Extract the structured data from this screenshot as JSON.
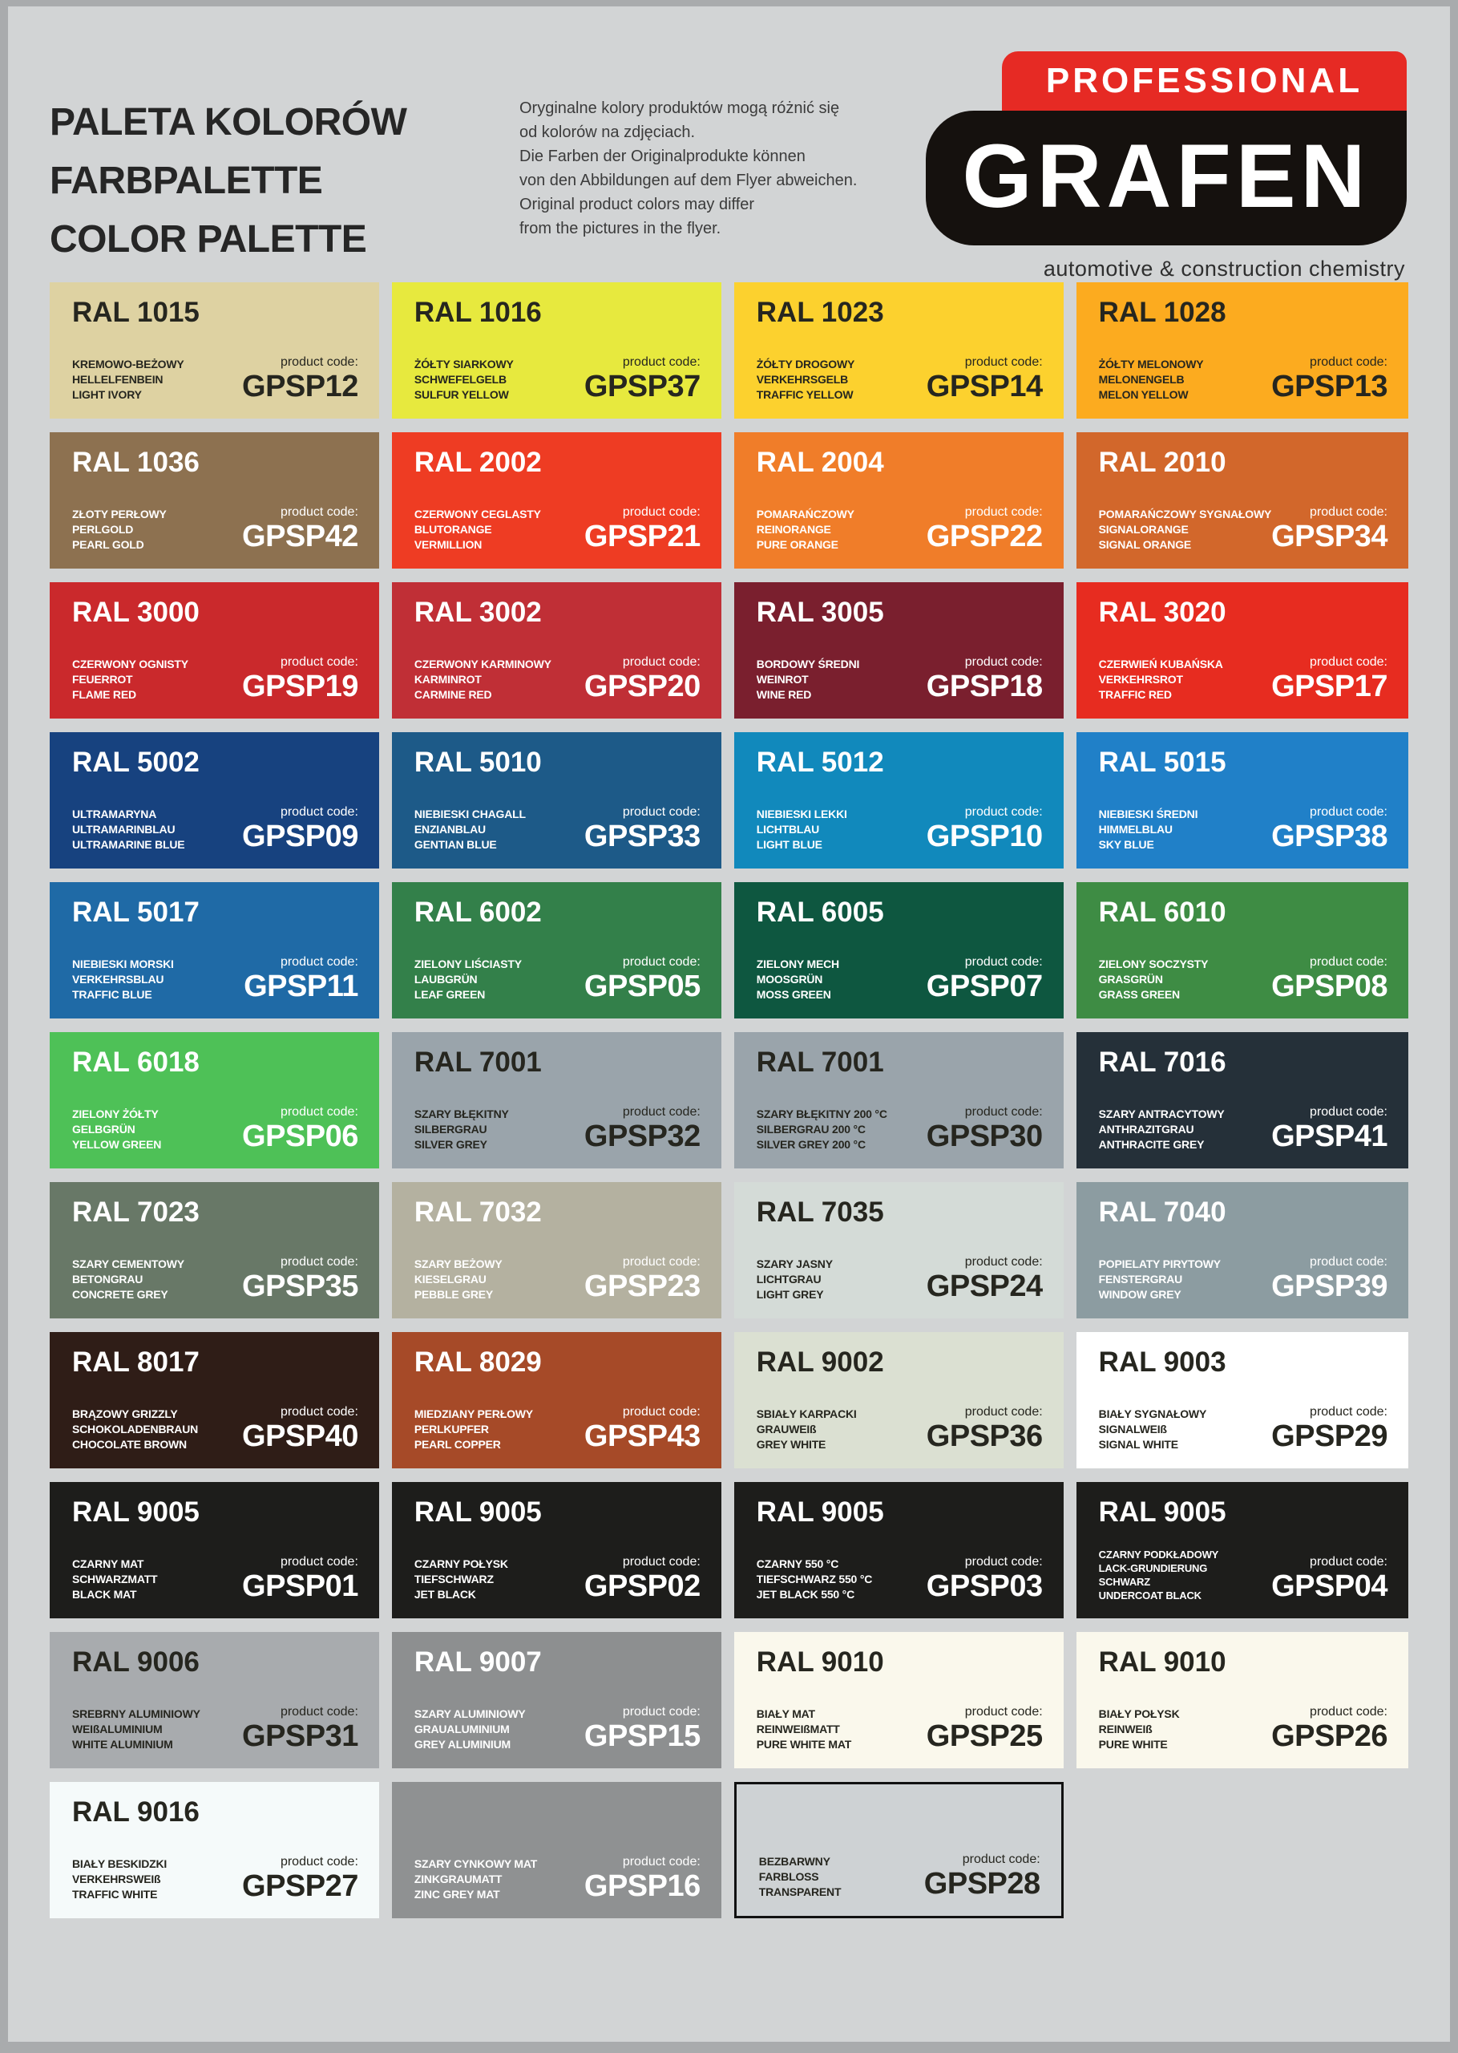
{
  "page": {
    "title_lines": [
      "PALETA KOLORÓW",
      "FARBPALETTE",
      "COLOR PALETTE"
    ],
    "disclaimer_lines": [
      "Oryginalne kolory produktów mogą różnić się",
      "od kolorów na zdjęciach.",
      "Die Farben der Originalprodukte können",
      "von den Abbildungen auf dem Flyer abweichen.",
      "Original product colors may differ",
      "from the pictures in the flyer."
    ],
    "code_label": "product code:",
    "logo": {
      "banner": "PROFESSIONAL",
      "brand": "GRAFEN",
      "caption": "automotive & construction chemistry",
      "banner_color": "#e62a24",
      "shape_color": "#15110e"
    },
    "background_color": "#d2d4d5",
    "outer_border_color": "#a9abad"
  },
  "chart_data": {
    "type": "table",
    "title": "PALETA KOLORÓW / FARBPALETTE / COLOR PALETTE",
    "columns": [
      "ral",
      "names (PL/DE/EN)",
      "product_code",
      "swatch_hex",
      "text_tone",
      "outlined"
    ],
    "rows": [
      {
        "ral": "RAL 1015",
        "names": [
          "KREMOWO-BEŻOWY",
          "HELLELFENBEIN",
          "LIGHT IVORY"
        ],
        "code": "GPSP12",
        "hex": "#ded2a2",
        "text": "dark",
        "outlined": false
      },
      {
        "ral": "RAL 1016",
        "names": [
          "ŻÓŁTY SIARKOWY",
          "SCHWEFELGELB",
          "SULFUR YELLOW"
        ],
        "code": "GPSP37",
        "hex": "#e7e93e",
        "text": "dark",
        "outlined": false
      },
      {
        "ral": "RAL 1023",
        "names": [
          "ŻÓŁTY DROGOWY",
          "VERKEHRSGELB",
          "TRAFFIC YELLOW"
        ],
        "code": "GPSP14",
        "hex": "#fcd12e",
        "text": "dark",
        "outlined": false
      },
      {
        "ral": "RAL 1028",
        "names": [
          "ŻÓŁTY MELONOWY",
          "MELONENGELB",
          "MELON YELLOW"
        ],
        "code": "GPSP13",
        "hex": "#fcab1f",
        "text": "dark",
        "outlined": false
      },
      {
        "ral": "RAL 1036",
        "names": [
          "ZŁOTY PERŁOWY",
          "PERLGOLD",
          "PEARL GOLD"
        ],
        "code": "GPSP42",
        "hex": "#8d7150",
        "text": "light",
        "outlined": false
      },
      {
        "ral": "RAL 2002",
        "names": [
          "CZERWONY CEGLASTY",
          "BLUTORANGE",
          "VERMILLION"
        ],
        "code": "GPSP21",
        "hex": "#ee3c23",
        "text": "light",
        "outlined": false
      },
      {
        "ral": "RAL 2004",
        "names": [
          "POMARAŃCZOWY",
          "REINORANGE",
          "PURE ORANGE"
        ],
        "code": "GPSP22",
        "hex": "#f07d29",
        "text": "light",
        "outlined": false
      },
      {
        "ral": "RAL 2010",
        "names": [
          "POMARAŃCZOWY SYGNAŁOWY",
          "SIGNALORANGE",
          "SIGNAL ORANGE"
        ],
        "code": "GPSP34",
        "hex": "#d2672b",
        "text": "light",
        "outlined": false
      },
      {
        "ral": "RAL 3000",
        "names": [
          "CZERWONY OGNISTY",
          "FEUERROT",
          "FLAME RED"
        ],
        "code": "GPSP19",
        "hex": "#ca292c",
        "text": "light",
        "outlined": false
      },
      {
        "ral": "RAL 3002",
        "names": [
          "CZERWONY KARMINOWY",
          "KARMINROT",
          "CARMINE RED"
        ],
        "code": "GPSP20",
        "hex": "#c02f36",
        "text": "light",
        "outlined": false
      },
      {
        "ral": "RAL 3005",
        "names": [
          "BORDOWY ŚREDNI",
          "WEINROT",
          "WINE RED"
        ],
        "code": "GPSP18",
        "hex": "#7a1f2e",
        "text": "light",
        "outlined": false
      },
      {
        "ral": "RAL 3020",
        "names": [
          "CZERWIEŃ KUBAŃSKA",
          "VERKEHRSROT",
          "TRAFFIC RED"
        ],
        "code": "GPSP17",
        "hex": "#e72c20",
        "text": "light",
        "outlined": false
      },
      {
        "ral": "RAL 5002",
        "names": [
          "ULTRAMARYNA",
          "ULTRAMARINBLAU",
          "ULTRAMARINE BLUE"
        ],
        "code": "GPSP09",
        "hex": "#17427f",
        "text": "light",
        "outlined": false
      },
      {
        "ral": "RAL 5010",
        "names": [
          "NIEBIESKI CHAGALL",
          "ENZIANBLAU",
          "GENTIAN BLUE"
        ],
        "code": "GPSP33",
        "hex": "#1d5a88",
        "text": "light",
        "outlined": false
      },
      {
        "ral": "RAL 5012",
        "names": [
          "NIEBIESKI LEKKI",
          "LICHTBLAU",
          "LIGHT BLUE"
        ],
        "code": "GPSP10",
        "hex": "#1189bc",
        "text": "light",
        "outlined": false
      },
      {
        "ral": "RAL 5015",
        "names": [
          "NIEBIESKI ŚREDNI",
          "HIMMELBLAU",
          "SKY BLUE"
        ],
        "code": "GPSP38",
        "hex": "#2080c8",
        "text": "light",
        "outlined": false
      },
      {
        "ral": "RAL 5017",
        "names": [
          "NIEBIESKI MORSKI",
          "VERKEHRSBLAU",
          "TRAFFIC BLUE"
        ],
        "code": "GPSP11",
        "hex": "#1f6aa6",
        "text": "light",
        "outlined": false
      },
      {
        "ral": "RAL 6002",
        "names": [
          "ZIELONY LIŚCIASTY",
          "LAUBGRÜN",
          "LEAF GREEN"
        ],
        "code": "GPSP05",
        "hex": "#33804a",
        "text": "light",
        "outlined": false
      },
      {
        "ral": "RAL 6005",
        "names": [
          "ZIELONY MECH",
          "MOOSGRÜN",
          "MOSS GREEN"
        ],
        "code": "GPSP07",
        "hex": "#0e5740",
        "text": "light",
        "outlined": false
      },
      {
        "ral": "RAL 6010",
        "names": [
          "ZIELONY SOCZYSTY",
          "GRASGRÜN",
          "GRASS GREEN"
        ],
        "code": "GPSP08",
        "hex": "#3e8c44",
        "text": "light",
        "outlined": false
      },
      {
        "ral": "RAL 6018",
        "names": [
          "ZIELONY ŻÓŁTY",
          "GELBGRÜN",
          "YELLOW GREEN"
        ],
        "code": "GPSP06",
        "hex": "#4ec157",
        "text": "light",
        "outlined": false
      },
      {
        "ral": "RAL 7001",
        "names": [
          "SZARY BŁĘKITNY",
          "SILBERGRAU",
          "SILVER GREY"
        ],
        "code": "GPSP32",
        "hex": "#9aa4ab",
        "text": "dark",
        "outlined": false
      },
      {
        "ral": "RAL 7001",
        "names": [
          "SZARY BŁĘKITNY 200 °C",
          "SILBERGRAU 200 °C",
          "SILVER GREY 200 °C"
        ],
        "code": "GPSP30",
        "hex": "#9aa4ab",
        "text": "dark",
        "outlined": false
      },
      {
        "ral": "RAL 7016",
        "names": [
          "SZARY ANTRACYTOWY",
          "ANTHRAZITGRAU",
          "ANTHRACITE GREY"
        ],
        "code": "GPSP41",
        "hex": "#253039",
        "text": "light",
        "outlined": false
      },
      {
        "ral": "RAL 7023",
        "names": [
          "SZARY CEMENTOWY",
          "BETONGRAU",
          "CONCRETE GREY"
        ],
        "code": "GPSP35",
        "hex": "#687867",
        "text": "light",
        "outlined": false
      },
      {
        "ral": "RAL 7032",
        "names": [
          "SZARY BEŻOWY",
          "KIESELGRAU",
          "PEBBLE GREY"
        ],
        "code": "GPSP23",
        "hex": "#b4b1a0",
        "text": "light",
        "outlined": false
      },
      {
        "ral": "RAL 7035",
        "names": [
          "SZARY JASNY",
          "LICHTGRAU",
          "LIGHT GREY"
        ],
        "code": "GPSP24",
        "hex": "#d4dbd7",
        "text": "dark",
        "outlined": false
      },
      {
        "ral": "RAL 7040",
        "names": [
          "POPIELATY PIRYTOWY",
          "FENSTERGRAU",
          "WINDOW GREY"
        ],
        "code": "GPSP39",
        "hex": "#8c9ca1",
        "text": "light",
        "outlined": false
      },
      {
        "ral": "RAL 8017",
        "names": [
          "BRĄZOWY GRIZZLY",
          "SCHOKOLADENBRAUN",
          "CHOCOLATE BROWN"
        ],
        "code": "GPSP40",
        "hex": "#2f1d17",
        "text": "light",
        "outlined": false
      },
      {
        "ral": "RAL 8029",
        "names": [
          "MIEDZIANY PERŁOWY",
          "PERLKUPFER",
          "PEARL COPPER"
        ],
        "code": "GPSP43",
        "hex": "#a64a28",
        "text": "light",
        "outlined": false
      },
      {
        "ral": "RAL 9002",
        "names": [
          "SBIAŁY KARPACKI",
          "GRAUWEIß",
          "GREY WHITE"
        ],
        "code": "GPSP36",
        "hex": "#dbe0d2",
        "text": "dark",
        "outlined": false
      },
      {
        "ral": "RAL 9003",
        "names": [
          "BIAŁY SYGNAŁOWY",
          "SIGNALWEIß",
          "SIGNAL WHITE"
        ],
        "code": "GPSP29",
        "hex": "#ffffff",
        "text": "dark",
        "outlined": false
      },
      {
        "ral": "RAL 9005",
        "names": [
          "CZARNY MAT",
          "SCHWARZMATT",
          "BLACK MAT"
        ],
        "code": "GPSP01",
        "hex": "#1d1d1b",
        "text": "light",
        "outlined": false
      },
      {
        "ral": "RAL 9005",
        "names": [
          "CZARNY POŁYSK",
          "TIEFSCHWARZ",
          "JET BLACK"
        ],
        "code": "GPSP02",
        "hex": "#1d1d1b",
        "text": "light",
        "outlined": false
      },
      {
        "ral": "RAL 9005",
        "names": [
          "CZARNY 550 °C",
          "TIEFSCHWARZ 550 °C",
          "JET BLACK 550 °C"
        ],
        "code": "GPSP03",
        "hex": "#1d1d1b",
        "text": "light",
        "outlined": false
      },
      {
        "ral": "RAL 9005",
        "names": [
          "CZARNY PODKŁADOWY",
          "LACK-GRUNDIERUNG",
          "SCHWARZ",
          "UNDERCOAT BLACK"
        ],
        "code": "GPSP04",
        "hex": "#1d1d1b",
        "text": "light",
        "outlined": false
      },
      {
        "ral": "RAL 9006",
        "names": [
          "SREBRNY ALUMINIOWY",
          "WEIßALUMINIUM",
          "WHITE ALUMINIUM"
        ],
        "code": "GPSP31",
        "hex": "#a8abae",
        "text": "dark",
        "outlined": false
      },
      {
        "ral": "RAL 9007",
        "names": [
          "SZARY ALUMINIOWY",
          "GRAUALUMINIUM",
          "GREY ALUMINIUM"
        ],
        "code": "GPSP15",
        "hex": "#8d8f90",
        "text": "light",
        "outlined": false
      },
      {
        "ral": "RAL 9010",
        "names": [
          "BIAŁY MAT",
          "REINWEIßMATT",
          "PURE WHITE MAT"
        ],
        "code": "GPSP25",
        "hex": "#faf8ec",
        "text": "dark",
        "outlined": false
      },
      {
        "ral": "RAL 9010",
        "names": [
          "BIAŁY POŁYSK",
          "REINWEIß",
          "PURE WHITE"
        ],
        "code": "GPSP26",
        "hex": "#faf8ec",
        "text": "dark",
        "outlined": false
      },
      {
        "ral": "RAL 9016",
        "names": [
          "BIAŁY BESKIDZKI",
          "VERKEHRSWEIß",
          "TRAFFIC WHITE"
        ],
        "code": "GPSP27",
        "hex": "#f5fafa",
        "text": "dark",
        "outlined": false
      },
      {
        "ral": "",
        "names": [
          "SZARY CYNKOWY MAT",
          "ZINKGRAUMATT",
          "ZINC GREY MAT"
        ],
        "code": "GPSP16",
        "hex": "#8f9192",
        "text": "light",
        "outlined": false
      },
      {
        "ral": "",
        "names": [
          "BEZBARWNY",
          "FARBLOSS",
          "TRANSPARENT"
        ],
        "code": "GPSP28",
        "hex": "#ced2d4",
        "text": "dark",
        "outlined": true
      }
    ]
  }
}
